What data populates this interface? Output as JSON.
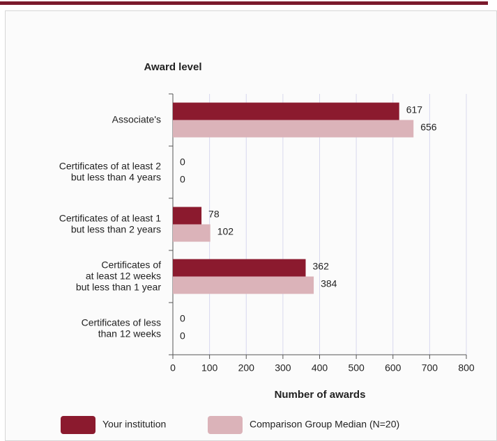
{
  "chart_data": {
    "type": "hbar",
    "category_title": "Award level",
    "xlabel": "Number of awards",
    "categories": [
      [
        "Associate's"
      ],
      [
        "Certificates of at least 2",
        "but less than 4 years"
      ],
      [
        "Certificates of at least 1",
        "but  less than 2 years"
      ],
      [
        "Certificates of",
        "at least 12 weeks",
        "but less than 1 year"
      ],
      [
        "Certificates of less",
        "than 12 weeks"
      ]
    ],
    "series": [
      {
        "name": "Your institution",
        "color": "#8b1a2e",
        "values": [
          617,
          0,
          78,
          362,
          0
        ]
      },
      {
        "name": "Comparison Group Median (N=20)",
        "color": "#dbb3b9",
        "values": [
          656,
          0,
          102,
          384,
          0
        ]
      }
    ],
    "xlim": [
      0,
      800
    ],
    "xticks": [
      0,
      100,
      200,
      300,
      400,
      500,
      600,
      700,
      800
    ],
    "grid": true
  }
}
